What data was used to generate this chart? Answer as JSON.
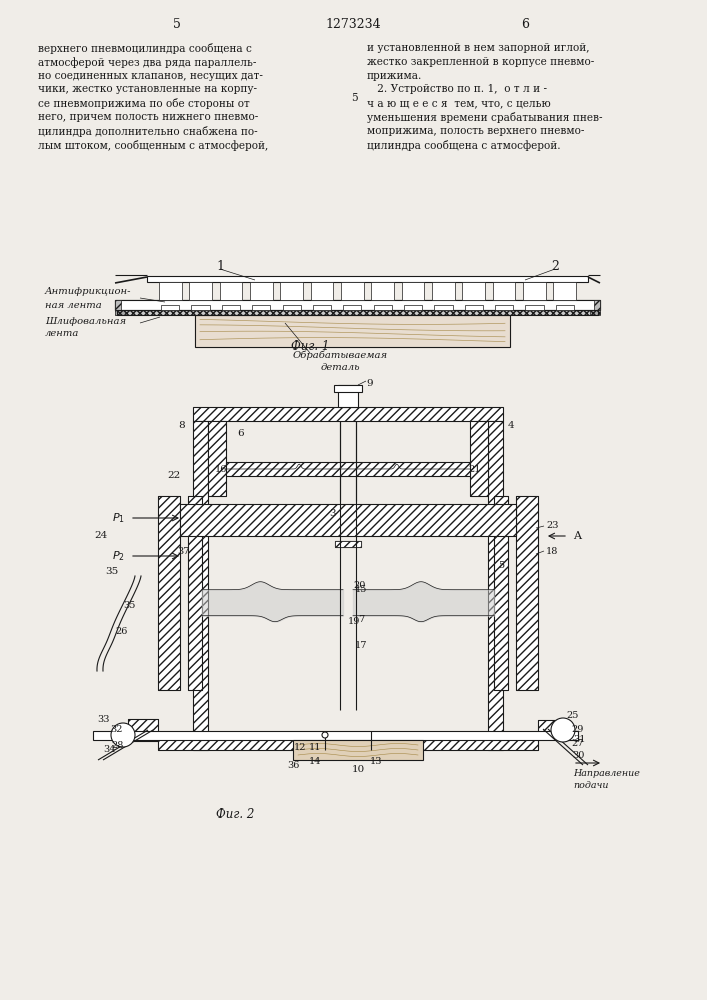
{
  "page_number_left": "5",
  "page_number_center": "1273234",
  "page_number_right": "6",
  "text_left_col": [
    "верхнего пневмоцилиндра сообщена с",
    "атмосферой через два ряда параллель-",
    "но соединенных клапанов, несущих дат-",
    "чики, жестко установленные на корпу-",
    "се пневмоприжима по обе стороны от",
    "него, причем полость нижнего пневмо-",
    "цилиндра дополнительно снабжена по-",
    "лым штоком, сообщенным с атмосферой,"
  ],
  "line_number_5": "5",
  "text_right_col": [
    "и установленной в нем запорной иглой,",
    "жестко закрепленной в корпусе пневмо-",
    "прижима.",
    "   2. Устройство по п. 1,  о т л и -",
    "ч а ю щ е е с я  тем, что, с целью",
    "уменьшения времени срабатывания пнев-",
    "моприжима, полость верхнего пневмо-",
    "цилиндра сообщена с атмосферой."
  ],
  "fig1_label": "Фиг. 1",
  "fig2_label": "Фиг. 2",
  "bg_color": "#f0ede8",
  "line_color": "#1a1a1a"
}
